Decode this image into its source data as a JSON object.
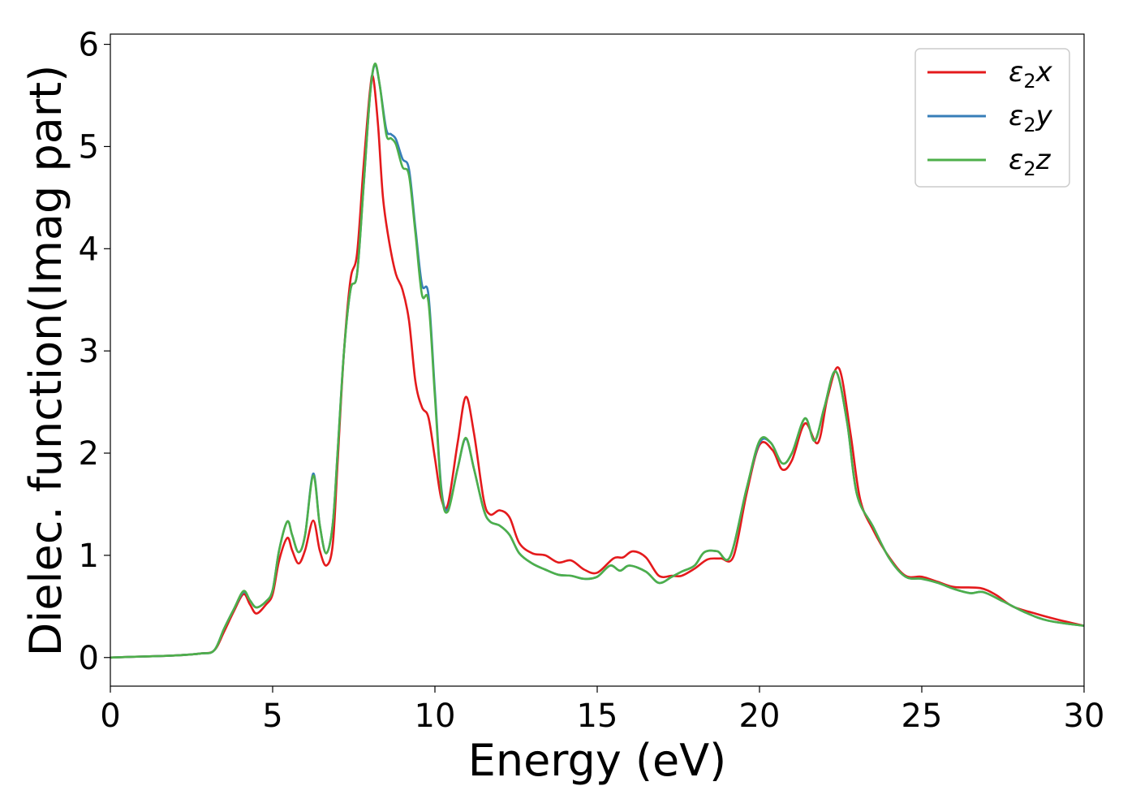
{
  "chart_data": {
    "type": "line",
    "title": "",
    "xlabel": "Energy (eV)",
    "ylabel": "Dielec. function(Imag part)",
    "xlim": [
      0,
      30
    ],
    "ylim": [
      -0.28,
      6.1
    ],
    "xticks": [
      0,
      5,
      10,
      15,
      20,
      25,
      30
    ],
    "yticks": [
      0,
      1,
      2,
      3,
      4,
      5,
      6
    ],
    "grid": false,
    "legend": "top-right",
    "series": [
      {
        "name": "ε₂x",
        "legend_base": "ε",
        "legend_sub": "2",
        "legend_tail": "x",
        "color": "#e41a1c",
        "points": [
          [
            0,
            0.0
          ],
          [
            1,
            0.01
          ],
          [
            2,
            0.02
          ],
          [
            2.8,
            0.04
          ],
          [
            3.2,
            0.07
          ],
          [
            3.5,
            0.25
          ],
          [
            3.8,
            0.45
          ],
          [
            4.1,
            0.62
          ],
          [
            4.3,
            0.52
          ],
          [
            4.5,
            0.43
          ],
          [
            4.8,
            0.52
          ],
          [
            5.0,
            0.62
          ],
          [
            5.2,
            0.95
          ],
          [
            5.45,
            1.17
          ],
          [
            5.6,
            1.05
          ],
          [
            5.8,
            0.92
          ],
          [
            6.0,
            1.05
          ],
          [
            6.25,
            1.34
          ],
          [
            6.45,
            1.05
          ],
          [
            6.65,
            0.9
          ],
          [
            6.85,
            1.1
          ],
          [
            7.0,
            1.9
          ],
          [
            7.2,
            3.0
          ],
          [
            7.4,
            3.7
          ],
          [
            7.6,
            3.95
          ],
          [
            7.8,
            4.8
          ],
          [
            8.0,
            5.55
          ],
          [
            8.1,
            5.67
          ],
          [
            8.25,
            5.2
          ],
          [
            8.4,
            4.5
          ],
          [
            8.6,
            4.05
          ],
          [
            8.8,
            3.75
          ],
          [
            9.0,
            3.6
          ],
          [
            9.2,
            3.3
          ],
          [
            9.4,
            2.7
          ],
          [
            9.6,
            2.45
          ],
          [
            9.8,
            2.35
          ],
          [
            10.0,
            1.95
          ],
          [
            10.2,
            1.55
          ],
          [
            10.4,
            1.5
          ],
          [
            10.7,
            2.1
          ],
          [
            10.95,
            2.55
          ],
          [
            11.2,
            2.2
          ],
          [
            11.5,
            1.55
          ],
          [
            11.7,
            1.4
          ],
          [
            12.0,
            1.44
          ],
          [
            12.3,
            1.37
          ],
          [
            12.6,
            1.12
          ],
          [
            13.0,
            1.02
          ],
          [
            13.4,
            1.0
          ],
          [
            13.8,
            0.93
          ],
          [
            14.2,
            0.95
          ],
          [
            14.6,
            0.86
          ],
          [
            15.0,
            0.83
          ],
          [
            15.5,
            0.97
          ],
          [
            15.8,
            0.98
          ],
          [
            16.1,
            1.04
          ],
          [
            16.5,
            0.98
          ],
          [
            16.9,
            0.8
          ],
          [
            17.3,
            0.8
          ],
          [
            17.6,
            0.8
          ],
          [
            18.0,
            0.87
          ],
          [
            18.4,
            0.96
          ],
          [
            18.8,
            0.97
          ],
          [
            19.2,
            0.99
          ],
          [
            19.6,
            1.6
          ],
          [
            20.0,
            2.08
          ],
          [
            20.4,
            2.03
          ],
          [
            20.7,
            1.84
          ],
          [
            21.0,
            1.93
          ],
          [
            21.4,
            2.29
          ],
          [
            21.8,
            2.1
          ],
          [
            22.1,
            2.55
          ],
          [
            22.45,
            2.83
          ],
          [
            22.8,
            2.2
          ],
          [
            23.1,
            1.55
          ],
          [
            23.5,
            1.25
          ],
          [
            24.0,
            0.98
          ],
          [
            24.5,
            0.8
          ],
          [
            25.0,
            0.79
          ],
          [
            25.5,
            0.74
          ],
          [
            26.0,
            0.69
          ],
          [
            26.8,
            0.68
          ],
          [
            27.3,
            0.61
          ],
          [
            27.8,
            0.5
          ],
          [
            28.5,
            0.43
          ],
          [
            29.2,
            0.37
          ],
          [
            30,
            0.31
          ]
        ]
      },
      {
        "name": "ε₂y",
        "legend_base": "ε",
        "legend_sub": "2",
        "legend_tail": "y",
        "color": "#377eb8",
        "points": [
          [
            0,
            0.0
          ],
          [
            1,
            0.01
          ],
          [
            2,
            0.02
          ],
          [
            2.8,
            0.04
          ],
          [
            3.2,
            0.07
          ],
          [
            3.5,
            0.28
          ],
          [
            3.8,
            0.47
          ],
          [
            4.1,
            0.64
          ],
          [
            4.3,
            0.56
          ],
          [
            4.5,
            0.49
          ],
          [
            4.8,
            0.55
          ],
          [
            5.0,
            0.66
          ],
          [
            5.2,
            1.05
          ],
          [
            5.45,
            1.33
          ],
          [
            5.6,
            1.2
          ],
          [
            5.8,
            1.03
          ],
          [
            6.0,
            1.2
          ],
          [
            6.25,
            1.8
          ],
          [
            6.45,
            1.3
          ],
          [
            6.65,
            1.02
          ],
          [
            6.85,
            1.3
          ],
          [
            7.0,
            2.0
          ],
          [
            7.2,
            3.0
          ],
          [
            7.4,
            3.6
          ],
          [
            7.6,
            3.75
          ],
          [
            7.8,
            4.6
          ],
          [
            8.0,
            5.5
          ],
          [
            8.15,
            5.8
          ],
          [
            8.3,
            5.6
          ],
          [
            8.5,
            5.17
          ],
          [
            8.65,
            5.12
          ],
          [
            8.8,
            5.07
          ],
          [
            9.0,
            4.88
          ],
          [
            9.2,
            4.78
          ],
          [
            9.4,
            4.2
          ],
          [
            9.6,
            3.65
          ],
          [
            9.8,
            3.55
          ],
          [
            10.0,
            2.6
          ],
          [
            10.2,
            1.65
          ],
          [
            10.4,
            1.45
          ],
          [
            10.7,
            1.85
          ],
          [
            10.95,
            2.14
          ],
          [
            11.2,
            1.85
          ],
          [
            11.5,
            1.45
          ],
          [
            11.7,
            1.33
          ],
          [
            12.0,
            1.29
          ],
          [
            12.3,
            1.2
          ],
          [
            12.6,
            1.02
          ],
          [
            13.0,
            0.92
          ],
          [
            13.4,
            0.86
          ],
          [
            13.8,
            0.81
          ],
          [
            14.2,
            0.8
          ],
          [
            14.6,
            0.77
          ],
          [
            15.0,
            0.79
          ],
          [
            15.4,
            0.9
          ],
          [
            15.7,
            0.85
          ],
          [
            16.0,
            0.9
          ],
          [
            16.5,
            0.84
          ],
          [
            16.9,
            0.73
          ],
          [
            17.3,
            0.79
          ],
          [
            17.6,
            0.84
          ],
          [
            18.0,
            0.9
          ],
          [
            18.3,
            1.03
          ],
          [
            18.7,
            1.04
          ],
          [
            19.1,
            0.99
          ],
          [
            19.6,
            1.65
          ],
          [
            20.0,
            2.1
          ],
          [
            20.35,
            2.1
          ],
          [
            20.7,
            1.9
          ],
          [
            21.0,
            2.0
          ],
          [
            21.4,
            2.34
          ],
          [
            21.7,
            2.12
          ],
          [
            22.0,
            2.45
          ],
          [
            22.35,
            2.8
          ],
          [
            22.7,
            2.3
          ],
          [
            23.0,
            1.6
          ],
          [
            23.5,
            1.28
          ],
          [
            24.0,
            0.97
          ],
          [
            24.5,
            0.79
          ],
          [
            25.0,
            0.77
          ],
          [
            25.5,
            0.73
          ],
          [
            26.0,
            0.67
          ],
          [
            26.5,
            0.63
          ],
          [
            26.9,
            0.64
          ],
          [
            27.5,
            0.55
          ],
          [
            28.2,
            0.44
          ],
          [
            28.9,
            0.36
          ],
          [
            30,
            0.31
          ]
        ]
      },
      {
        "name": "ε₂z",
        "legend_base": "ε",
        "legend_sub": "2",
        "legend_tail": "z",
        "color": "#4daf4a",
        "points": [
          [
            0,
            0.0
          ],
          [
            1,
            0.01
          ],
          [
            2,
            0.02
          ],
          [
            2.8,
            0.04
          ],
          [
            3.2,
            0.07
          ],
          [
            3.5,
            0.28
          ],
          [
            3.8,
            0.47
          ],
          [
            4.1,
            0.65
          ],
          [
            4.3,
            0.56
          ],
          [
            4.5,
            0.49
          ],
          [
            4.8,
            0.55
          ],
          [
            5.0,
            0.66
          ],
          [
            5.2,
            1.05
          ],
          [
            5.45,
            1.33
          ],
          [
            5.6,
            1.2
          ],
          [
            5.8,
            1.03
          ],
          [
            6.0,
            1.2
          ],
          [
            6.25,
            1.78
          ],
          [
            6.45,
            1.3
          ],
          [
            6.65,
            1.02
          ],
          [
            6.85,
            1.3
          ],
          [
            7.0,
            2.0
          ],
          [
            7.2,
            3.0
          ],
          [
            7.4,
            3.6
          ],
          [
            7.6,
            3.75
          ],
          [
            7.8,
            4.6
          ],
          [
            8.0,
            5.5
          ],
          [
            8.15,
            5.81
          ],
          [
            8.3,
            5.6
          ],
          [
            8.5,
            5.12
          ],
          [
            8.65,
            5.08
          ],
          [
            8.8,
            5.02
          ],
          [
            9.0,
            4.8
          ],
          [
            9.2,
            4.72
          ],
          [
            9.4,
            4.15
          ],
          [
            9.6,
            3.55
          ],
          [
            9.8,
            3.48
          ],
          [
            10.0,
            2.55
          ],
          [
            10.2,
            1.62
          ],
          [
            10.4,
            1.43
          ],
          [
            10.7,
            1.85
          ],
          [
            10.95,
            2.15
          ],
          [
            11.2,
            1.85
          ],
          [
            11.5,
            1.45
          ],
          [
            11.7,
            1.33
          ],
          [
            12.0,
            1.29
          ],
          [
            12.3,
            1.2
          ],
          [
            12.6,
            1.02
          ],
          [
            13.0,
            0.92
          ],
          [
            13.4,
            0.86
          ],
          [
            13.8,
            0.81
          ],
          [
            14.2,
            0.8
          ],
          [
            14.6,
            0.77
          ],
          [
            15.0,
            0.79
          ],
          [
            15.4,
            0.9
          ],
          [
            15.7,
            0.85
          ],
          [
            16.0,
            0.9
          ],
          [
            16.5,
            0.84
          ],
          [
            16.9,
            0.73
          ],
          [
            17.3,
            0.79
          ],
          [
            17.6,
            0.84
          ],
          [
            18.0,
            0.9
          ],
          [
            18.3,
            1.03
          ],
          [
            18.7,
            1.04
          ],
          [
            19.1,
            0.99
          ],
          [
            19.6,
            1.65
          ],
          [
            20.0,
            2.12
          ],
          [
            20.35,
            2.1
          ],
          [
            20.7,
            1.9
          ],
          [
            21.0,
            2.0
          ],
          [
            21.4,
            2.34
          ],
          [
            21.7,
            2.12
          ],
          [
            22.0,
            2.45
          ],
          [
            22.35,
            2.8
          ],
          [
            22.7,
            2.3
          ],
          [
            23.0,
            1.6
          ],
          [
            23.5,
            1.28
          ],
          [
            24.0,
            0.97
          ],
          [
            24.5,
            0.79
          ],
          [
            25.0,
            0.77
          ],
          [
            25.5,
            0.73
          ],
          [
            26.0,
            0.67
          ],
          [
            26.5,
            0.63
          ],
          [
            26.9,
            0.64
          ],
          [
            27.5,
            0.55
          ],
          [
            28.2,
            0.44
          ],
          [
            28.9,
            0.36
          ],
          [
            30,
            0.31
          ]
        ]
      }
    ]
  }
}
